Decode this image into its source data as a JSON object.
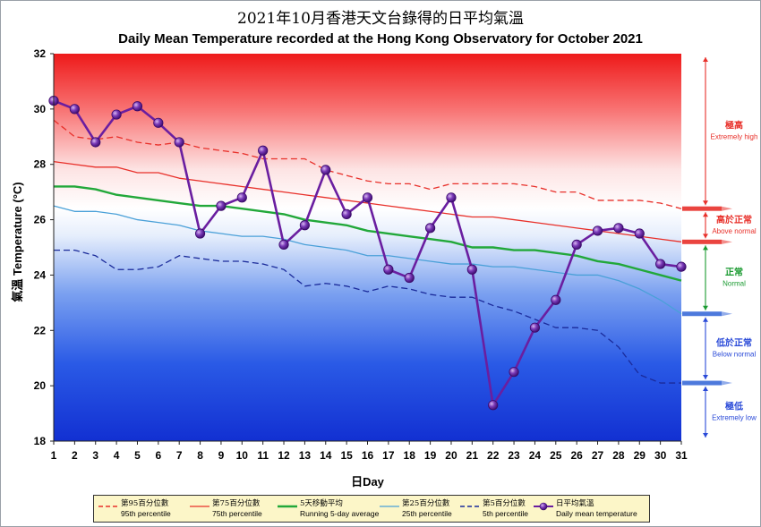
{
  "title_zh": "2021年10月香港天文台錄得的日平均氣溫",
  "title_en": "Daily Mean Temperature recorded at the Hong Kong Observatory for October 2021",
  "chart_data": {
    "type": "line",
    "ylabel": "Temperature (°C)",
    "ylabel_zh": "氣溫",
    "xlabel": "日Day",
    "xlim": [
      1,
      31
    ],
    "ylim": [
      18,
      32
    ],
    "yticks": [
      18,
      20,
      22,
      24,
      26,
      28,
      30,
      32
    ],
    "x": [
      1,
      2,
      3,
      4,
      5,
      6,
      7,
      8,
      9,
      10,
      11,
      12,
      13,
      14,
      15,
      16,
      17,
      18,
      19,
      20,
      21,
      22,
      23,
      24,
      25,
      26,
      27,
      28,
      29,
      30,
      31
    ],
    "series": [
      {
        "key": "p95",
        "name_zh": "第95百分位數",
        "name": "95th percentile",
        "color": "#e8302a",
        "dash": true,
        "values": [
          29.6,
          29.0,
          28.9,
          29.0,
          28.8,
          28.7,
          28.8,
          28.6,
          28.5,
          28.4,
          28.2,
          28.2,
          28.2,
          27.8,
          27.6,
          27.4,
          27.3,
          27.3,
          27.1,
          27.3,
          27.3,
          27.3,
          27.3,
          27.2,
          27.0,
          27.0,
          26.7,
          26.7,
          26.7,
          26.6,
          26.4
        ]
      },
      {
        "key": "p75",
        "name_zh": "第75百分位數",
        "name": "75th percentile",
        "color": "#e8302a",
        "dash": false,
        "values": [
          28.1,
          28.0,
          27.9,
          27.9,
          27.7,
          27.7,
          27.5,
          27.4,
          27.3,
          27.2,
          27.1,
          27.0,
          26.9,
          26.8,
          26.7,
          26.6,
          26.5,
          26.4,
          26.3,
          26.2,
          26.1,
          26.1,
          26.0,
          25.9,
          25.8,
          25.7,
          25.6,
          25.5,
          25.4,
          25.3,
          25.2
        ]
      },
      {
        "key": "avg5",
        "name_zh": "5天移動平均",
        "name": "Running 5-day average",
        "color": "#22a83a",
        "dash": false,
        "values": [
          27.2,
          27.2,
          27.1,
          26.9,
          26.8,
          26.7,
          26.6,
          26.5,
          26.5,
          26.4,
          26.3,
          26.2,
          26.0,
          25.9,
          25.8,
          25.6,
          25.5,
          25.4,
          25.3,
          25.2,
          25.0,
          25.0,
          24.9,
          24.9,
          24.8,
          24.7,
          24.5,
          24.4,
          24.2,
          24.0,
          23.8
        ]
      },
      {
        "key": "p25",
        "name_zh": "第25百分位數",
        "name": "25th percentile",
        "color": "#4aa0d8",
        "dash": false,
        "values": [
          26.5,
          26.3,
          26.3,
          26.2,
          26.0,
          25.9,
          25.8,
          25.6,
          25.5,
          25.4,
          25.4,
          25.3,
          25.1,
          25.0,
          24.9,
          24.7,
          24.7,
          24.6,
          24.5,
          24.4,
          24.4,
          24.3,
          24.3,
          24.2,
          24.1,
          24.0,
          24.0,
          23.8,
          23.5,
          23.1,
          22.6
        ]
      },
      {
        "key": "p5",
        "name_zh": "第5百分位數",
        "name": "5th percentile",
        "color": "#1a2a9a",
        "dash": true,
        "values": [
          24.9,
          24.9,
          24.7,
          24.2,
          24.2,
          24.3,
          24.7,
          24.6,
          24.5,
          24.5,
          24.4,
          24.2,
          23.6,
          23.7,
          23.6,
          23.4,
          23.6,
          23.5,
          23.3,
          23.2,
          23.2,
          22.9,
          22.7,
          22.4,
          22.1,
          22.1,
          22.0,
          21.4,
          20.4,
          20.1,
          20.1
        ]
      },
      {
        "key": "daily",
        "name_zh": "日平均氣溫",
        "name": "Daily mean temperature",
        "color": "#6a1ea0",
        "dash": false,
        "values": [
          30.3,
          30.0,
          28.8,
          29.8,
          30.1,
          29.5,
          28.8,
          25.5,
          26.5,
          26.8,
          28.5,
          25.1,
          25.8,
          27.8,
          26.2,
          26.8,
          24.2,
          23.9,
          25.7,
          26.8,
          24.2,
          19.3,
          20.5,
          22.1,
          23.1,
          25.1,
          25.6,
          25.7,
          25.5,
          24.4,
          24.3
        ]
      }
    ],
    "bands": [
      {
        "zh": "極高",
        "en": "Extremely high",
        "color": "#e8302a"
      },
      {
        "zh": "高於正常",
        "en": "Above normal",
        "color": "#e8302a"
      },
      {
        "zh": "正常",
        "en": "Normal",
        "color": "#1a9a30"
      },
      {
        "zh": "低於正常",
        "en": "Below normal",
        "color": "#2a4ad8"
      },
      {
        "zh": "極低",
        "en": "Extremely low",
        "color": "#2a4ad8"
      }
    ],
    "grid": false,
    "legend_position": "bottom"
  }
}
